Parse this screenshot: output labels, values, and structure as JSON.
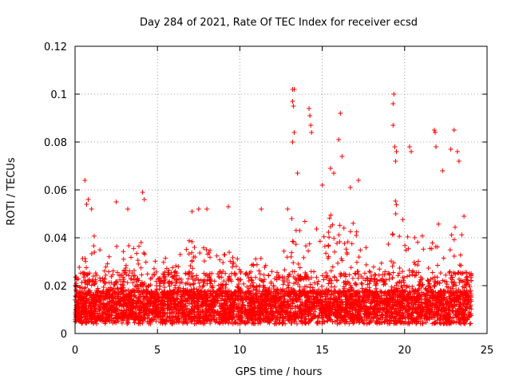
{
  "chart_data": {
    "type": "scatter",
    "title": "Day 284 of 2021, Rate Of TEC Index for receiver ecsd",
    "xlabel": "GPS time / hours",
    "ylabel": "ROTI / TECUs",
    "xlim": [
      0,
      25
    ],
    "ylim": [
      0,
      0.12
    ],
    "x_ticks": [
      "0",
      "5",
      "10",
      "15",
      "20",
      "25"
    ],
    "y_ticks": [
      "0",
      "0.02",
      "0.04",
      "0.06",
      "0.08",
      "0.1",
      "0.12"
    ],
    "grid": true,
    "marker": "plus",
    "series": [
      {
        "color": "#ff0000",
        "points": [
          [
            0.6,
            0.064
          ],
          [
            0.7,
            0.054
          ],
          [
            0.8,
            0.056
          ],
          [
            1.0,
            0.052
          ],
          [
            2.5,
            0.055
          ],
          [
            3.2,
            0.052
          ],
          [
            4.1,
            0.059
          ],
          [
            4.2,
            0.056
          ],
          [
            7.1,
            0.051
          ],
          [
            7.5,
            0.052
          ],
          [
            8.0,
            0.052
          ],
          [
            9.3,
            0.053
          ],
          [
            11.3,
            0.052
          ],
          [
            12.9,
            0.052
          ],
          [
            13.2,
            0.102
          ],
          [
            13.3,
            0.102
          ],
          [
            13.2,
            0.097
          ],
          [
            13.25,
            0.095
          ],
          [
            13.3,
            0.084
          ],
          [
            13.2,
            0.08
          ],
          [
            13.5,
            0.067
          ],
          [
            14.2,
            0.094
          ],
          [
            14.25,
            0.091
          ],
          [
            14.3,
            0.087
          ],
          [
            14.35,
            0.084
          ],
          [
            15.0,
            0.062
          ],
          [
            15.5,
            0.069
          ],
          [
            15.7,
            0.067
          ],
          [
            16.1,
            0.092
          ],
          [
            16.2,
            0.074
          ],
          [
            16.0,
            0.081
          ],
          [
            16.7,
            0.061
          ],
          [
            17.2,
            0.064
          ],
          [
            19.35,
            0.1
          ],
          [
            19.3,
            0.096
          ],
          [
            19.3,
            0.087
          ],
          [
            19.4,
            0.078
          ],
          [
            19.5,
            0.076
          ],
          [
            19.45,
            0.072
          ],
          [
            20.3,
            0.078
          ],
          [
            20.4,
            0.076
          ],
          [
            21.8,
            0.085
          ],
          [
            21.85,
            0.084
          ],
          [
            21.9,
            0.078
          ],
          [
            22.3,
            0.068
          ],
          [
            22.8,
            0.077
          ],
          [
            23.0,
            0.085
          ],
          [
            23.2,
            0.076
          ],
          [
            23.3,
            0.072
          ],
          [
            23.6,
            0.049
          ]
        ],
        "envelope": [
          [
            0,
            0.026
          ],
          [
            0.5,
            0.032
          ],
          [
            1.0,
            0.048
          ],
          [
            1.5,
            0.035
          ],
          [
            2.0,
            0.032
          ],
          [
            2.5,
            0.04
          ],
          [
            3.0,
            0.038
          ],
          [
            3.5,
            0.036
          ],
          [
            4.0,
            0.04
          ],
          [
            4.5,
            0.03
          ],
          [
            5.0,
            0.034
          ],
          [
            5.5,
            0.032
          ],
          [
            6.0,
            0.03
          ],
          [
            6.5,
            0.035
          ],
          [
            7.0,
            0.04
          ],
          [
            7.5,
            0.034
          ],
          [
            8.0,
            0.038
          ],
          [
            8.5,
            0.032
          ],
          [
            9.0,
            0.036
          ],
          [
            9.5,
            0.04
          ],
          [
            10.0,
            0.03
          ],
          [
            10.5,
            0.028
          ],
          [
            11.0,
            0.035
          ],
          [
            11.5,
            0.03
          ],
          [
            12.0,
            0.024
          ],
          [
            12.5,
            0.032
          ],
          [
            13.0,
            0.05
          ],
          [
            13.5,
            0.045
          ],
          [
            14.0,
            0.05
          ],
          [
            14.5,
            0.046
          ],
          [
            15.0,
            0.048
          ],
          [
            15.5,
            0.05
          ],
          [
            16.0,
            0.052
          ],
          [
            16.5,
            0.045
          ],
          [
            17.0,
            0.048
          ],
          [
            17.5,
            0.04
          ],
          [
            18.0,
            0.035
          ],
          [
            18.5,
            0.032
          ],
          [
            19.0,
            0.04
          ],
          [
            19.5,
            0.058
          ],
          [
            20.0,
            0.045
          ],
          [
            20.5,
            0.04
          ],
          [
            21.0,
            0.042
          ],
          [
            21.5,
            0.04
          ],
          [
            22.0,
            0.048
          ],
          [
            22.5,
            0.04
          ],
          [
            23.0,
            0.045
          ],
          [
            23.5,
            0.042
          ],
          [
            24.0,
            0.028
          ]
        ]
      }
    ]
  }
}
